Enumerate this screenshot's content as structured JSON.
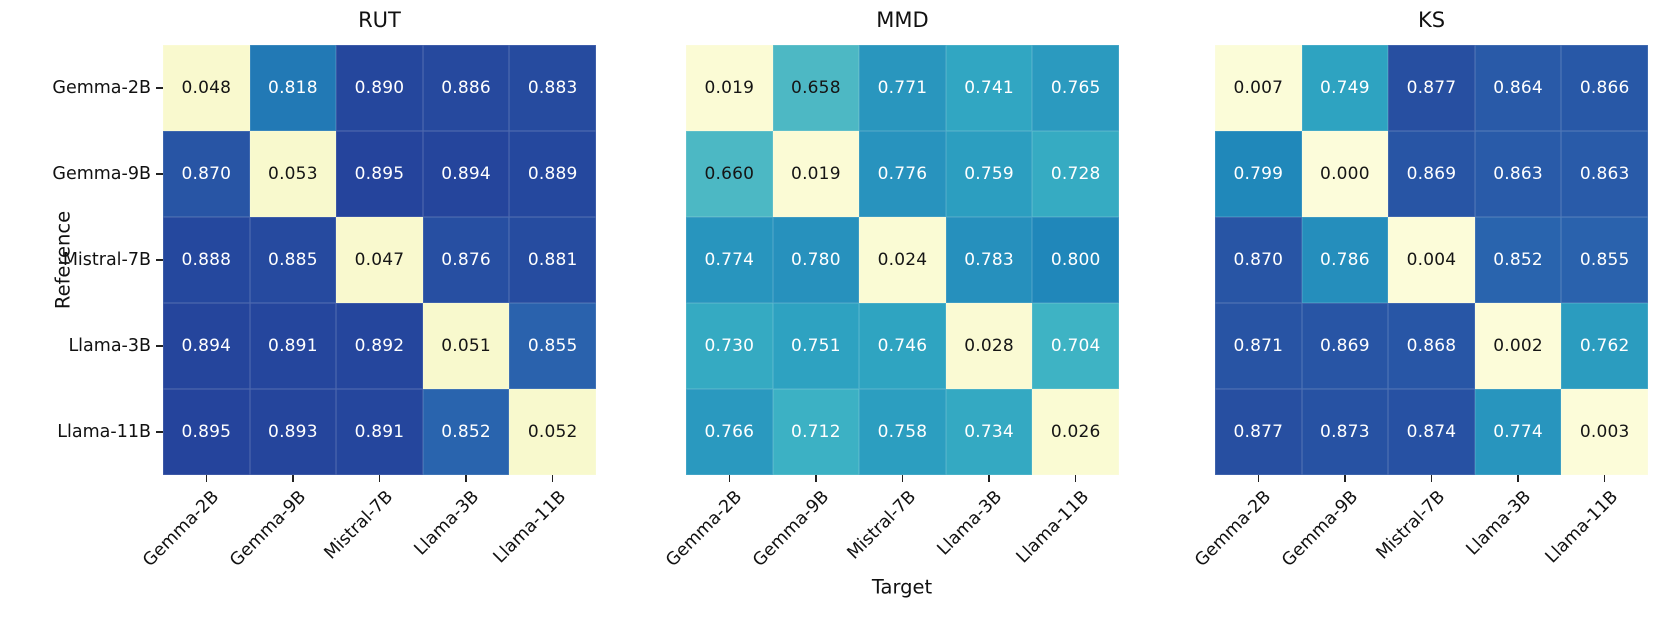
{
  "figure": {
    "ylabel": "Reference",
    "xlabel": "Target"
  },
  "chart_data": [
    {
      "type": "heatmap",
      "title": "RUT",
      "y": [
        "Gemma-2B",
        "Gemma-9B",
        "Mistral-7B",
        "Llama-3B",
        "Llama-11B"
      ],
      "x": [
        "Gemma-2B",
        "Gemma-9B",
        "Mistral-7B",
        "Llama-3B",
        "Llama-11B"
      ],
      "values": [
        [
          0.048,
          0.818,
          0.89,
          0.886,
          0.883
        ],
        [
          0.87,
          0.053,
          0.895,
          0.894,
          0.889
        ],
        [
          0.888,
          0.885,
          0.047,
          0.876,
          0.881
        ],
        [
          0.894,
          0.891,
          0.892,
          0.051,
          0.855
        ],
        [
          0.895,
          0.893,
          0.891,
          0.852,
          0.052
        ]
      ],
      "value_decimals": 3,
      "colormap": "YlGnBu",
      "annotated": true,
      "grid_size": "5x5"
    },
    {
      "type": "heatmap",
      "title": "MMD",
      "y": [
        "Gemma-2B",
        "Gemma-9B",
        "Mistral-7B",
        "Llama-3B",
        "Llama-11B"
      ],
      "x": [
        "Gemma-2B",
        "Gemma-9B",
        "Mistral-7B",
        "Llama-3B",
        "Llama-11B"
      ],
      "values": [
        [
          0.019,
          0.658,
          0.771,
          0.741,
          0.765
        ],
        [
          0.66,
          0.019,
          0.776,
          0.759,
          0.728
        ],
        [
          0.774,
          0.78,
          0.024,
          0.783,
          0.8
        ],
        [
          0.73,
          0.751,
          0.746,
          0.028,
          0.704
        ],
        [
          0.766,
          0.712,
          0.758,
          0.734,
          0.026
        ]
      ],
      "value_decimals": 3,
      "colormap": "YlGnBu",
      "annotated": true,
      "grid_size": "5x5"
    },
    {
      "type": "heatmap",
      "title": "KS",
      "y": [
        "Gemma-2B",
        "Gemma-9B",
        "Mistral-7B",
        "Llama-3B",
        "Llama-11B"
      ],
      "x": [
        "Gemma-2B",
        "Gemma-9B",
        "Mistral-7B",
        "Llama-3B",
        "Llama-11B"
      ],
      "values": [
        [
          0.007,
          0.749,
          0.877,
          0.864,
          0.866
        ],
        [
          0.799,
          0.0,
          0.869,
          0.863,
          0.863
        ],
        [
          0.87,
          0.786,
          0.004,
          0.852,
          0.855
        ],
        [
          0.871,
          0.869,
          0.868,
          0.002,
          0.762
        ],
        [
          0.877,
          0.873,
          0.874,
          0.774,
          0.003
        ]
      ],
      "value_decimals": 3,
      "colormap": "YlGnBu",
      "annotated": true,
      "grid_size": "5x5"
    }
  ],
  "style": {
    "background": "#ffffff",
    "colormap_anchors": [
      [
        0.0,
        "#fcfcda"
      ],
      [
        0.055,
        "#f8f9cc"
      ],
      [
        0.655,
        "#4eb8c4"
      ],
      [
        0.705,
        "#3eb3c4"
      ],
      [
        0.75,
        "#2ea3c1"
      ],
      [
        0.78,
        "#2791bd"
      ],
      [
        0.8,
        "#2087ba"
      ],
      [
        0.82,
        "#2277b4"
      ],
      [
        0.855,
        "#2a62ad"
      ],
      [
        0.875,
        "#2750a2"
      ],
      [
        0.9,
        "#24419a"
      ],
      [
        1.0,
        "#1c2f7d"
      ]
    ],
    "annotation_dark_text": "#151515",
    "annotation_light_text": "#ffffff",
    "tick_color": "#222222"
  }
}
